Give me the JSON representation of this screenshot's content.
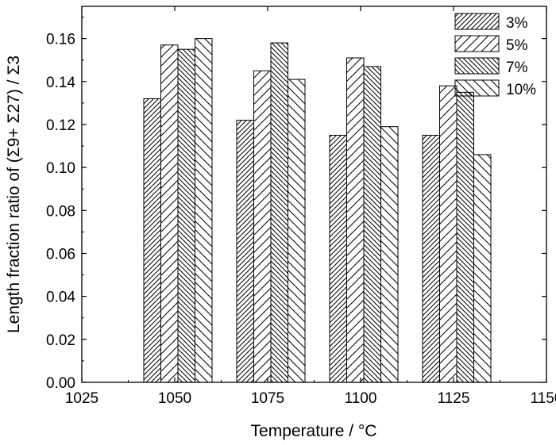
{
  "chart_data": {
    "type": "bar",
    "title": "",
    "xlabel": "Temperature / °C",
    "ylabel": "Length fraction ratio of (Σ9+ Σ27) / Σ3",
    "x": [
      1050,
      1075,
      1100,
      1125
    ],
    "xlim": [
      1025,
      1150
    ],
    "xticks": [
      "1025",
      "1050",
      "1075",
      "1100",
      "1125",
      "1150"
    ],
    "ylim": [
      0,
      0.175
    ],
    "yticks": [
      "0.00",
      "0.02",
      "0.04",
      "0.06",
      "0.08",
      "0.10",
      "0.12",
      "0.14",
      "0.16"
    ],
    "grid": false,
    "legend_position": "top-right",
    "series": [
      {
        "name": "3%",
        "pattern": "diagonal-up-right",
        "values": [
          0.132,
          0.122,
          0.115,
          0.115
        ]
      },
      {
        "name": "5%",
        "pattern": "diagonal-up-right-sparse",
        "values": [
          0.157,
          0.145,
          0.151,
          0.138
        ]
      },
      {
        "name": "7%",
        "pattern": "diagonal-down-right",
        "values": [
          0.155,
          0.158,
          0.147,
          0.135
        ]
      },
      {
        "name": "10%",
        "pattern": "diagonal-down-right-sparse",
        "values": [
          0.16,
          0.141,
          0.119,
          0.106
        ]
      }
    ]
  }
}
